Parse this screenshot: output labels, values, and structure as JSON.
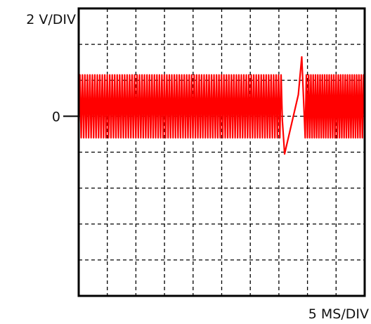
{
  "chart_data": {
    "type": "line",
    "title": "",
    "y_scale_label": "2 V/DIV",
    "x_scale_label": "5 MS/DIV",
    "zero_marker_label": "0",
    "divisions": {
      "x": 10,
      "y": 8
    },
    "grid": "dashed",
    "ylim": [
      -10,
      6
    ],
    "xlim": [
      0,
      50
    ],
    "colors": {
      "trace": "#ff0000",
      "frame": "#000000",
      "grid": "#000000"
    },
    "series": [
      {
        "color": "#ff0000",
        "segments": [
          {
            "x_start": 0.0,
            "x_end": 35.6,
            "cycles": 82,
            "y_high": 2.3,
            "y_low": -1.2,
            "y_end": -0.2
          },
          {
            "x_end": 36.0,
            "y": -2.1
          },
          {
            "x_end": 38.4,
            "y": 1.2
          },
          {
            "x_end": 39.0,
            "y": 3.3
          },
          {
            "x_end": 39.6,
            "y": -1.2
          },
          {
            "x_start": 39.6,
            "x_end": 50.0,
            "cycles": 26,
            "y_high": 2.3,
            "y_low": -1.2,
            "y_end": -0.6
          }
        ]
      }
    ]
  }
}
